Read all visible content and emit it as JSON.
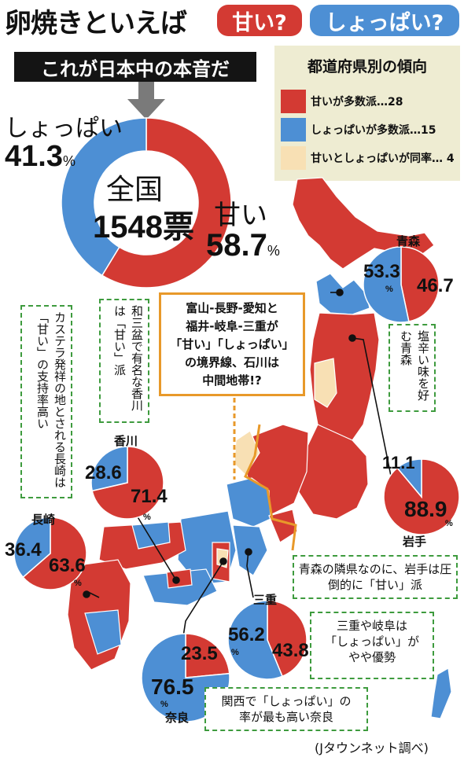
{
  "title": "卵焼きといえば",
  "pill_sweet": "甘い?",
  "pill_salty": "しょっぱい?",
  "banner": "これが日本中の本音だ",
  "legend": {
    "title": "都道府県別の傾向",
    "rows": [
      {
        "color": "#d33a33",
        "label": "甘いが多数派…28"
      },
      {
        "color": "#4d8fd4",
        "label": "しょっぱいが多数派…15"
      },
      {
        "color": "#f8e0b4",
        "label": "甘いとしょっぱいが同率…  4"
      }
    ]
  },
  "national": {
    "center_label": "全国",
    "total": "1548票",
    "salty_label": "しょっぱい",
    "salty_value": "41.3",
    "sweet_label": "甘い",
    "sweet_value": "58.7",
    "pct": "%"
  },
  "notes": {
    "callout": [
      "富山-長野-愛知と",
      "福井-岐阜-三重が",
      "「甘い」「しょっぱい」",
      "の境界線、石川は",
      "中間地帯!?"
    ],
    "aomori": "塩辛い味を好む青森",
    "kagawa": "和三盆で有名な香川は「甘い」派",
    "nagasaki": "カステラ発祥の地とされる長崎は「甘い」の支持率高い",
    "iwate": "青森の隣県なのに、岩手は圧倒的に「甘い」派",
    "mie": [
      "三重や岐阜は",
      "「しょっぱい」が",
      "やや優勢"
    ],
    "nara": [
      "関西で「しょっぱい」の",
      "率が最も高い奈良"
    ]
  },
  "credit": "(Jタウンネット調べ)",
  "colors": {
    "sweet": "#d33a33",
    "salty": "#4d8fd4",
    "tie": "#f8e0b4",
    "border": "#e8992a",
    "note": "#3e9b3e"
  },
  "chart_data": [
    {
      "type": "pie",
      "name": "全国",
      "categories": [
        "甘い",
        "しょっぱい"
      ],
      "values": [
        58.7,
        41.3
      ]
    },
    {
      "type": "pie",
      "name": "青森",
      "categories": [
        "甘い",
        "しょっぱい"
      ],
      "values": [
        46.7,
        53.3
      ]
    },
    {
      "type": "pie",
      "name": "岩手",
      "categories": [
        "甘い",
        "しょっぱい"
      ],
      "values": [
        88.9,
        11.1
      ]
    },
    {
      "type": "pie",
      "name": "香川",
      "categories": [
        "甘い",
        "しょっぱい"
      ],
      "values": [
        71.4,
        28.6
      ]
    },
    {
      "type": "pie",
      "name": "長崎",
      "categories": [
        "甘い",
        "しょっぱい"
      ],
      "values": [
        63.6,
        36.4
      ]
    },
    {
      "type": "pie",
      "name": "三重",
      "categories": [
        "甘い",
        "しょっぱい"
      ],
      "values": [
        43.8,
        56.2
      ]
    },
    {
      "type": "pie",
      "name": "奈良",
      "categories": [
        "甘い",
        "しょっぱい"
      ],
      "values": [
        23.5,
        76.5
      ]
    }
  ]
}
